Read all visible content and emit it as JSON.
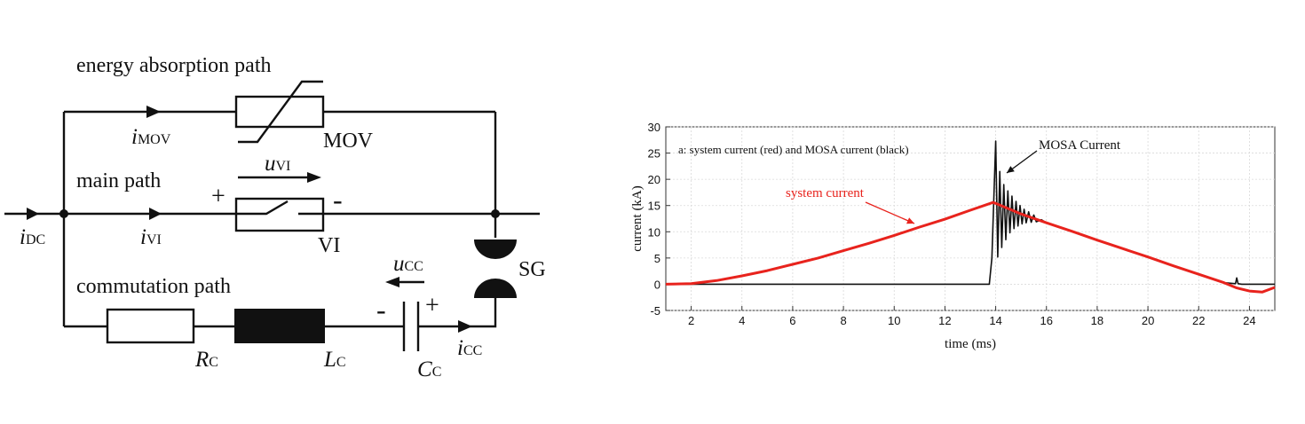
{
  "circuit": {
    "path_labels": {
      "energy": "energy absorption path",
      "main": "main path",
      "commutation": "commutation path"
    },
    "currents": {
      "dc": {
        "main": "i",
        "sub": "DC"
      },
      "mov": {
        "main": "i",
        "sub": "MOV"
      },
      "vi": {
        "main": "i",
        "sub": "VI"
      },
      "cc": {
        "main": "i",
        "sub": "CC"
      }
    },
    "voltages": {
      "vi": {
        "main": "u",
        "sub": "VI"
      },
      "cc": {
        "main": "u",
        "sub": "CC"
      }
    },
    "components": {
      "mov": "MOV",
      "vi": "VI",
      "sg": "SG",
      "rc": {
        "main": "R",
        "sub": "C"
      },
      "lc": {
        "main": "L",
        "sub": "C"
      },
      "cc": {
        "main": "C",
        "sub": "C"
      }
    },
    "polarity": {
      "vi_plus": "+",
      "vi_minus": "-",
      "cc_minus": "-",
      "cc_plus": "+"
    }
  },
  "chart_data": {
    "type": "line",
    "annotation": "a: system current (red) and MOSA current (black)",
    "xlabel": "time (ms)",
    "ylabel": "current (kA)",
    "xlim": [
      1,
      25
    ],
    "ylim": [
      -5,
      30
    ],
    "xticks": [
      2,
      4,
      6,
      8,
      10,
      12,
      14,
      16,
      18,
      20,
      22,
      24
    ],
    "yticks": [
      -5,
      0,
      5,
      10,
      15,
      20,
      25,
      30
    ],
    "grid": true,
    "callouts": [
      {
        "text": "system current",
        "target_series": "system current",
        "color": "#e8231d"
      },
      {
        "text": "MOSA Current",
        "target_series": "MOSA current",
        "color": "#111111"
      }
    ],
    "series": [
      {
        "name": "system current",
        "color": "#e8231d",
        "x": [
          1.0,
          2.0,
          3.0,
          4.0,
          5.0,
          6.0,
          7.0,
          8.0,
          9.0,
          10.0,
          11.0,
          12.0,
          13.0,
          13.9,
          14.0,
          15.0,
          16.0,
          17.0,
          18.0,
          19.0,
          20.0,
          21.0,
          22.0,
          23.0,
          23.5,
          24.0,
          24.5,
          25.0
        ],
        "y": [
          0.0,
          0.1,
          0.7,
          1.6,
          2.6,
          3.8,
          5.0,
          6.4,
          7.8,
          9.3,
          10.9,
          12.4,
          14.1,
          15.6,
          15.4,
          13.4,
          11.7,
          10.1,
          8.4,
          6.8,
          5.2,
          3.5,
          1.9,
          0.3,
          -0.7,
          -1.3,
          -1.5,
          -0.6
        ]
      },
      {
        "name": "MOSA current",
        "color": "#111111",
        "x": [
          1.0,
          13.75,
          13.85,
          14.0,
          14.08,
          14.16,
          14.24,
          14.32,
          14.4,
          14.48,
          14.56,
          14.64,
          14.72,
          14.8,
          14.88,
          14.96,
          15.04,
          15.12,
          15.2,
          15.3,
          15.4,
          15.5,
          15.6,
          15.8,
          16.0,
          17.0,
          18.0,
          19.0,
          20.0,
          21.0,
          22.0,
          23.0,
          23.45,
          23.5,
          23.55,
          23.7,
          24.0,
          25.0
        ],
        "y": [
          0.0,
          0.0,
          5.0,
          27.3,
          5.2,
          21.5,
          7.0,
          19.0,
          8.5,
          17.8,
          9.8,
          16.8,
          10.6,
          15.8,
          11.1,
          15.0,
          11.5,
          14.3,
          11.7,
          13.8,
          11.8,
          13.2,
          11.9,
          12.3,
          11.7,
          10.1,
          8.4,
          6.8,
          5.2,
          3.5,
          1.9,
          0.3,
          0.1,
          1.2,
          0.1,
          0.0,
          0.0,
          0.0
        ]
      }
    ]
  }
}
